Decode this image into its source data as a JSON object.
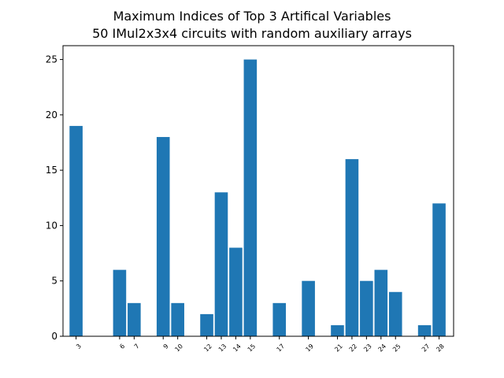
{
  "chart_data": {
    "type": "bar",
    "title": [
      "Maximum Indices of Top 3 Artifical Variables",
      "50 IMul2x3x4 circuits with random auxiliary arrays"
    ],
    "xlabel": "",
    "ylabel": "",
    "x": [
      3,
      6,
      7,
      9,
      10,
      12,
      13,
      14,
      15,
      17,
      19,
      21,
      22,
      23,
      24,
      25,
      27,
      28
    ],
    "values": [
      19,
      6,
      3,
      18,
      3,
      2,
      13,
      8,
      25,
      3,
      5,
      1,
      16,
      5,
      6,
      4,
      1,
      12
    ],
    "xticks": [
      "3",
      "6",
      "7",
      "9",
      "10",
      "12",
      "13",
      "14",
      "15",
      "17",
      "19",
      "21",
      "22",
      "23",
      "24",
      "25",
      "27",
      "28"
    ],
    "yticks": [
      0,
      5,
      10,
      15,
      20,
      25
    ],
    "ylim": [
      0,
      26.25
    ],
    "color": "#1f77b4",
    "grid": false,
    "legend": false
  }
}
